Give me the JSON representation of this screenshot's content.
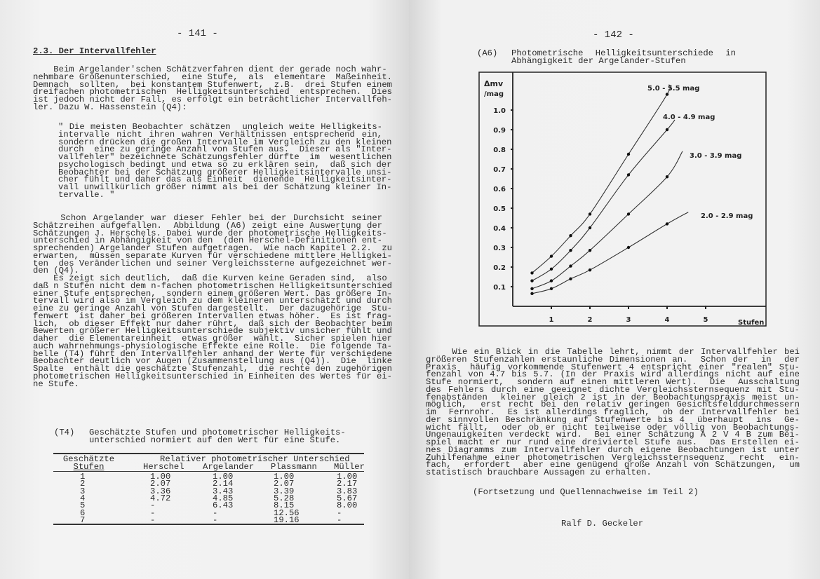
{
  "left_page": {
    "page_number": "- 141 -",
    "heading": "2.3. Der Intervallfehler",
    "paragraph1": [
      "    Beim Argelander'schen Schätzverfahren dient der gerade noch wahr-",
      "nehmbare Größenunterschied,  eine Stufe,  als  elementare  Maßeinheit.",
      "Demnach  sollten,  bei konstantem Stufenwert,  z.B.  drei Stufen einem",
      "dreifachen photometrischen  Helligkeitsunterschied  entsprechen.  Dies",
      "ist jedoch nicht der Fall, es erfolgt ein beträchtlicher Intervallfeh-",
      "ler. Dazu W. Hassenstein (Q4):"
    ],
    "quote": [
      "\" Die meisten Beobachter schätzen  ungleich weite Helligkeits-",
      "intervalle nicht ihren wahren Verhältnissen entsprechend ein,",
      "sondern drücken die großen Intervalle im Vergleich zu den kleinen",
      "durch  eine zu geringe Anzahl von Stufen aus.  Dieser als \"Inter-",
      "vallfehler\" bezeichnete Schätzungsfehler dürfte  im  wesentlichen",
      "psychologisch bedingt und etwa so zu erklären sein,  daß sich der",
      "Beobachter bei der Schätzung größerer Helligkeitsintervalle unsi-",
      "cher fühlt und daher das als Einheit  dienende  Helligkeitsinter-",
      "vall unwillkürlich größer nimmt als bei der Schätzung kleiner In-",
      "tervalle. \""
    ],
    "paragraph2": [
      "    Schon Argelander war dieser Fehler bei der Durchsicht seiner",
      "Schätzreihen aufgefallen.  Abbildung (A6) zeigt eine Auswertung der",
      "Schätzungen J. Herschels. Dabei wurde der photometrische Helligkeits-",
      "unterschied in Abhängigkeit von den  (den Herschel-Definitionen ent-",
      "sprechenden) Argelander Stufen aufgetragen.  Wie nach Kapitel 2.2.  zu",
      "erwarten,  müssen separate Kurven für verschiedene mittlere Helligkei-",
      "ten  des Veränderlichen und seiner Vergleichssterne aufgezeichnet wer-",
      "den (Q4)."
    ],
    "paragraph3": [
      "    Es zeigt sich deutlich,  daß die Kurven keine Geraden sind,  also",
      "daß n Stufen nicht dem n-fachen photometrischen Helligkeitsunterschied",
      "einer Stufe entsprechen,  sondern einem größeren Wert. Das größere In-",
      "tervall wird also im Vergleich zu dem kleineren unterschätzt und durch",
      "eine zu geringe Anzahl von Stufen dargestellt.  Der dazugehörige  Stu-",
      "fenwert  ist daher bei größeren Intervallen etwas höher.  Es ist frag-",
      "lich,  ob dieser Effekt nur daher rührt,  daß sich der Beobachter beim",
      "Bewerten größerer Helligkeitsunterschiede subjektiv unsicher fühlt und",
      "daher  die Elementareinheit  etwas größer  wählt.  Sicher spielen hier",
      "auch wahrnehmungs-physiologische Effekte eine Rolle.  Die folgende Ta-",
      "belle (T4) führt den Intervallfehler anhand der Werte für verschiedene",
      "Beobachter deutlich vor Augen (Zusammenstellung aus (Q4)).  Die  linke",
      "Spalte  enthält die geschätzte Stufenzahl,  die rechte den zugehörigen",
      "photometrischen Helligkeitsunterschied in Einheiten des Wertes für ei-",
      "ne Stufe."
    ],
    "table": {
      "label": "(T4)",
      "caption": [
        "Geschätzte Stufen und photometrischer Helligkeits-",
        "unterschied normiert auf den Wert für eine Stufe."
      ],
      "col1_header": [
        "Geschätzte",
        "Stufen"
      ],
      "group_header": "Relativer photometrischer Unterschied",
      "columns": [
        "Herschel",
        "Argelander",
        "Plassmann",
        "Müller"
      ],
      "rows": [
        [
          "1",
          "1.00",
          "1.00",
          "1.00",
          "1.00"
        ],
        [
          "2",
          "2.07",
          "2.14",
          "2.07",
          "2.17"
        ],
        [
          "3",
          "3.36",
          "3.43",
          "3.39",
          "3.83"
        ],
        [
          "4",
          "4.72",
          "4.85",
          "5.28",
          "5.67"
        ],
        [
          "5",
          "-",
          "6.43",
          "8.15",
          "8.00"
        ],
        [
          "6",
          "-",
          "-",
          "12.56",
          "-"
        ],
        [
          "7",
          "-",
          "-",
          "19.16",
          "-"
        ]
      ]
    }
  },
  "right_page": {
    "page_number": "- 142 -",
    "figure_label": "(A6)",
    "figure_caption": [
      "Photometrische Helligkeitsunterschiede in",
      "Abhängigkeit der Argelander-Stufen"
    ],
    "body": [
      "    Wie ein Blick in die Tabelle lehrt, nimmt der Intervallfehler bei",
      "größeren Stufenzahlen erstaunliche Dimensionen an.  Schon der  in  der",
      "Praxis  häufig vorkommende Stufenwert 4 entspricht einer \"realen\" Stu-",
      "fenzahl von 4.7 bis 5.7. (In der Praxis wird allerdings nicht auf eine",
      "Stufe normiert,  sondern auf einen mittleren Wert).  Die  Ausschaltung",
      "des Fehlers durch eine geeignet dichte Vergleichssternsequenz mit Stu-",
      "fenabständen  kleiner gleich 2 ist in der Beobachtungspraxis meist un-",
      "möglich,  erst recht bei den relativ geringen Gesichtsfelddurchmessern",
      "im  Fernrohr.  Es ist allerdings fraglich,  ob der Intervallfehler bei",
      "der sinnvollen Beschränkung auf Stufenwerte bis 4  überhaupt  ins  Ge-",
      "wicht fällt,  oder ob er nicht teilweise oder völlig von Beobachtungs-",
      "Ungenauigkeiten verdeckt wird.  Bei einer Schätzung A 2 V 4 B zum Bei-",
      "spiel macht er nur rund eine dreiviertel Stufe aus.  Das Erstellen ei-",
      "nes Diagramms zum Intervallfehler durch eigene Beobachtungen ist unter",
      "Zuhilfenahme einer photometrischen Vergleichssternsequenz  recht  ein-",
      "fach,  erfordert  aber eine genügend große Anzahl von Schätzungen,  um",
      "statistisch brauchbare Aussagen zu erhalten."
    ],
    "continuation": "(Fortsetzung und Quellennachweise im Teil 2)",
    "author": "Ralf D. Geckeler"
  },
  "chart_data": {
    "type": "line",
    "title": "Photometrische Helligkeitsunterschiede in Abhängigkeit der Argelander-Stufen",
    "xlabel": "Stufen",
    "ylabel": "Δmv /mag",
    "xlim": [
      0,
      6.5
    ],
    "ylim": [
      0,
      1.2
    ],
    "xticks": [
      "1",
      "2",
      "3",
      "4",
      "5"
    ],
    "yticks": [
      "0.1",
      "0.2",
      "0.3",
      "0.4",
      "0.5",
      "0.6",
      "0.7",
      "0.8",
      "0.9",
      "1.0"
    ],
    "grid": false,
    "series": [
      {
        "name": "5.0 - 5.5 mag",
        "x": [
          0.5,
          1,
          1.5,
          2,
          3,
          4
        ],
        "y": [
          0.17,
          0.255,
          0.36,
          0.47,
          0.775,
          1.08
        ]
      },
      {
        "name": "4.0 - 4.9 mag",
        "x": [
          0.5,
          1,
          1.5,
          2,
          3,
          4
        ],
        "y": [
          0.13,
          0.19,
          0.285,
          0.4,
          0.67,
          0.9
        ]
      },
      {
        "name": "3.0 - 3.9 mag",
        "x": [
          0.5,
          1,
          1.5,
          2,
          3,
          4
        ],
        "y": [
          0.09,
          0.13,
          0.205,
          0.285,
          0.47,
          0.66
        ]
      },
      {
        "name": "2.0 - 2.9 mag",
        "x": [
          0.5,
          1,
          1.5,
          2,
          3,
          4
        ],
        "y": [
          0.065,
          0.09,
          0.14,
          0.185,
          0.3,
          0.42
        ]
      }
    ]
  }
}
